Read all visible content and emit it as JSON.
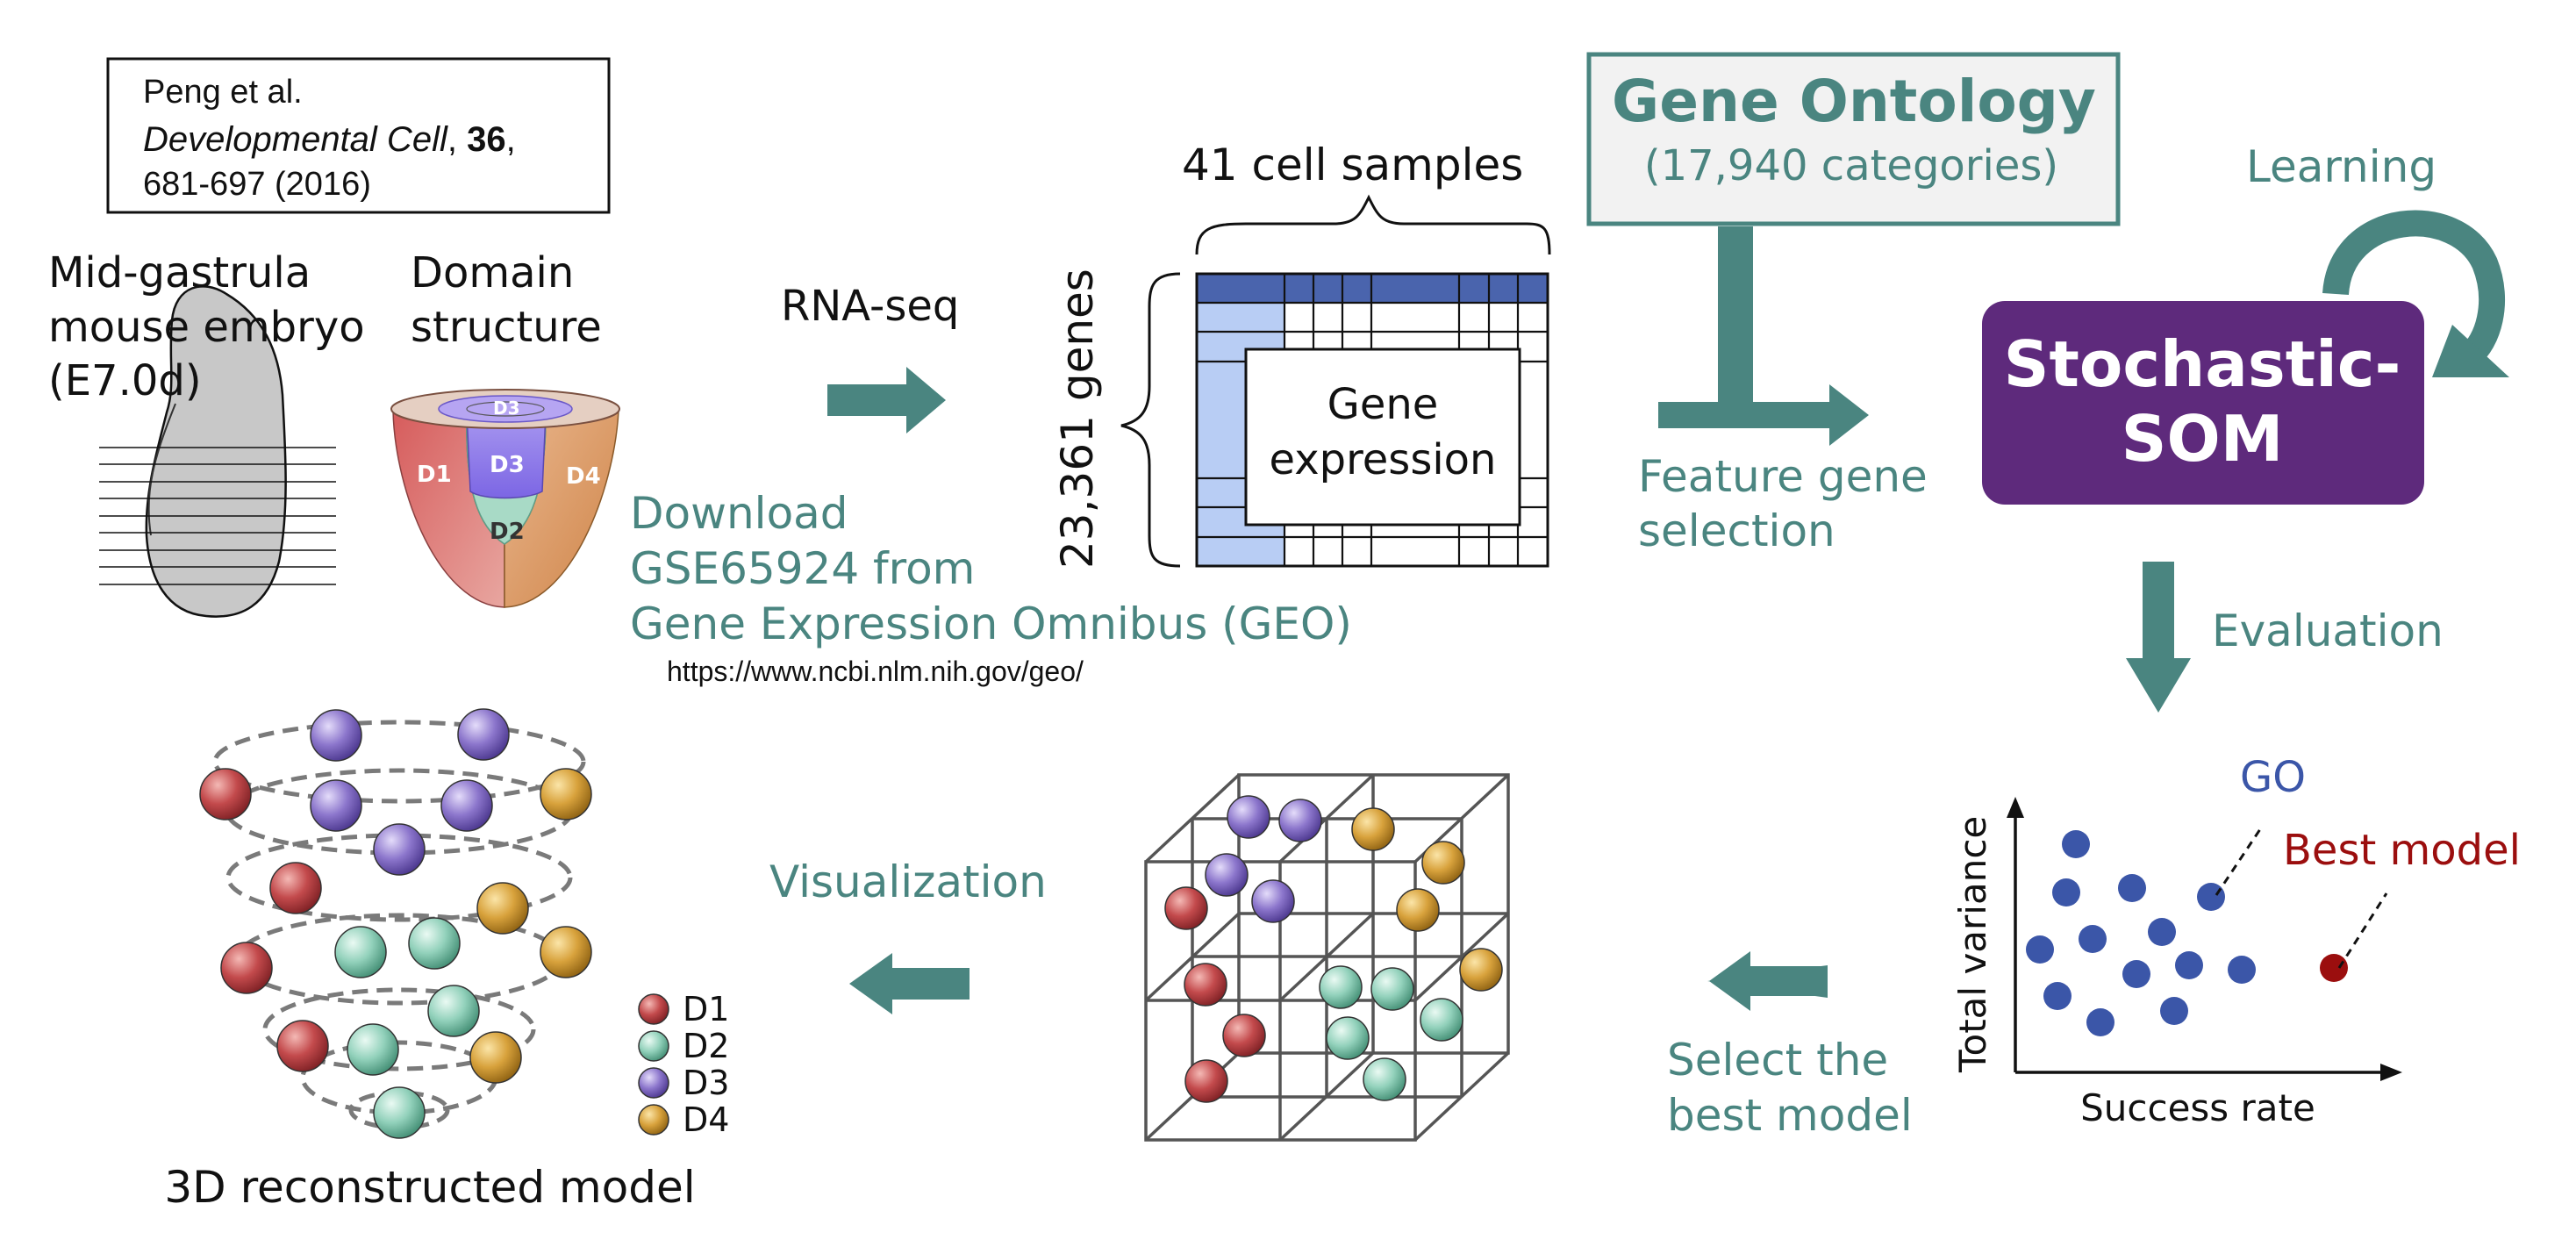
{
  "citation": {
    "authors": "Peng et al.",
    "journal": "Developmental Cell",
    "comma1": ", ",
    "volume": "36",
    "comma2": ",",
    "pages_year": "681-697 (2016)"
  },
  "embryo": {
    "title_line1": "Mid-gastrula",
    "title_line2": "mouse embryo",
    "title_line3": "(E7.0d)"
  },
  "domain_structure": {
    "title_line1": "Domain",
    "title_line2": "structure",
    "labels": {
      "d1": "D1",
      "d2": "D2",
      "d3": "D3",
      "d3_top": "D3",
      "d4": "D4"
    }
  },
  "rnaseq": {
    "label": "RNA-seq"
  },
  "download": {
    "line1": "Download",
    "line2": "GSE65924 from",
    "line3": "Gene Expression Omnibus (GEO)",
    "url": "https://www.ncbi.nlm.nih.gov/geo/"
  },
  "matrix": {
    "samples_label": "41 cell samples",
    "genes_label": "23,361 genes",
    "center_line1": "Gene",
    "center_line2": "expression"
  },
  "gene_ontology": {
    "title": "Gene Ontology",
    "subtitle": "(17,940 categories)"
  },
  "feature_selection": {
    "line1": "Feature gene",
    "line2": "selection"
  },
  "learning": {
    "label": "Learning"
  },
  "som": {
    "line1": "Stochastic-",
    "line2": "SOM"
  },
  "evaluation": {
    "label": "Evaluation"
  },
  "scatter": {
    "xlabel": "Success rate",
    "ylabel": "Total variance",
    "go_label": "GO",
    "best_label": "Best model"
  },
  "select_best": {
    "line1": "Select the",
    "line2": "best model"
  },
  "visualization": {
    "label": "Visualization"
  },
  "legend": {
    "d1": "D1",
    "d2": "D2",
    "d3": "D3",
    "d4": "D4"
  },
  "reconstruction": {
    "caption": "3D reconstructed model"
  },
  "colors": {
    "teal": "#4a8580",
    "som_purple": "#5e2a7c",
    "matrix_blue_dark": "#4a64ad",
    "matrix_blue_light": "#b8cdf4",
    "scatter_blue": "#3b56a8",
    "best_red": "#9b0e0e",
    "d1_red": "#c0474b",
    "d2_green": "#8fd0b9",
    "d3_purple": "#8a73c9",
    "d4_gold": "#d6a23c"
  }
}
